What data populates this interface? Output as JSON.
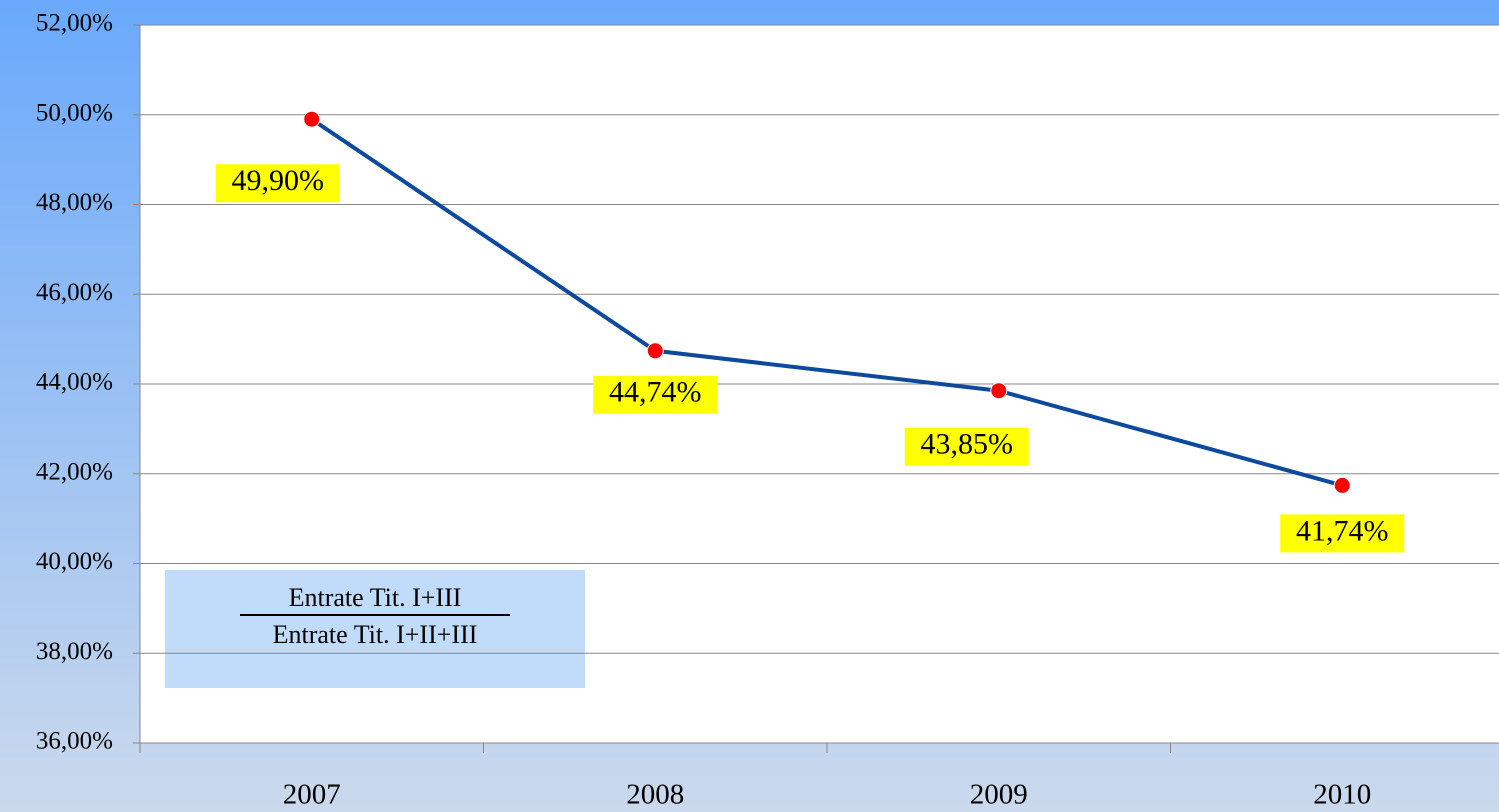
{
  "chart_data": {
    "type": "line",
    "categories": [
      "2007",
      "2008",
      "2009",
      "2010"
    ],
    "series": [
      {
        "name": null,
        "color": "#0e4a9c",
        "marker_color": "#ff0000",
        "values": [
          49.9,
          44.74,
          43.85,
          41.74
        ],
        "value_labels": [
          "49,90%",
          "44,74%",
          "43,85%",
          "41,74%"
        ]
      }
    ],
    "ylim": [
      36,
      52
    ],
    "yticks": [
      {
        "value": 36,
        "label": "36,00%"
      },
      {
        "value": 38,
        "label": "38,00%"
      },
      {
        "value": 40,
        "label": "40,00%"
      },
      {
        "value": 42,
        "label": "42,00%"
      },
      {
        "value": 44,
        "label": "44,00%"
      },
      {
        "value": 46,
        "label": "46,00%"
      },
      {
        "value": 48,
        "label": "48,00%"
      },
      {
        "value": 50,
        "label": "50,00%"
      },
      {
        "value": 52,
        "label": "52,00%"
      }
    ],
    "grid": true,
    "annotation": {
      "numerator": "Entrate Tit. I+III",
      "denominator": "Entrate Tit. I+II+III"
    }
  }
}
